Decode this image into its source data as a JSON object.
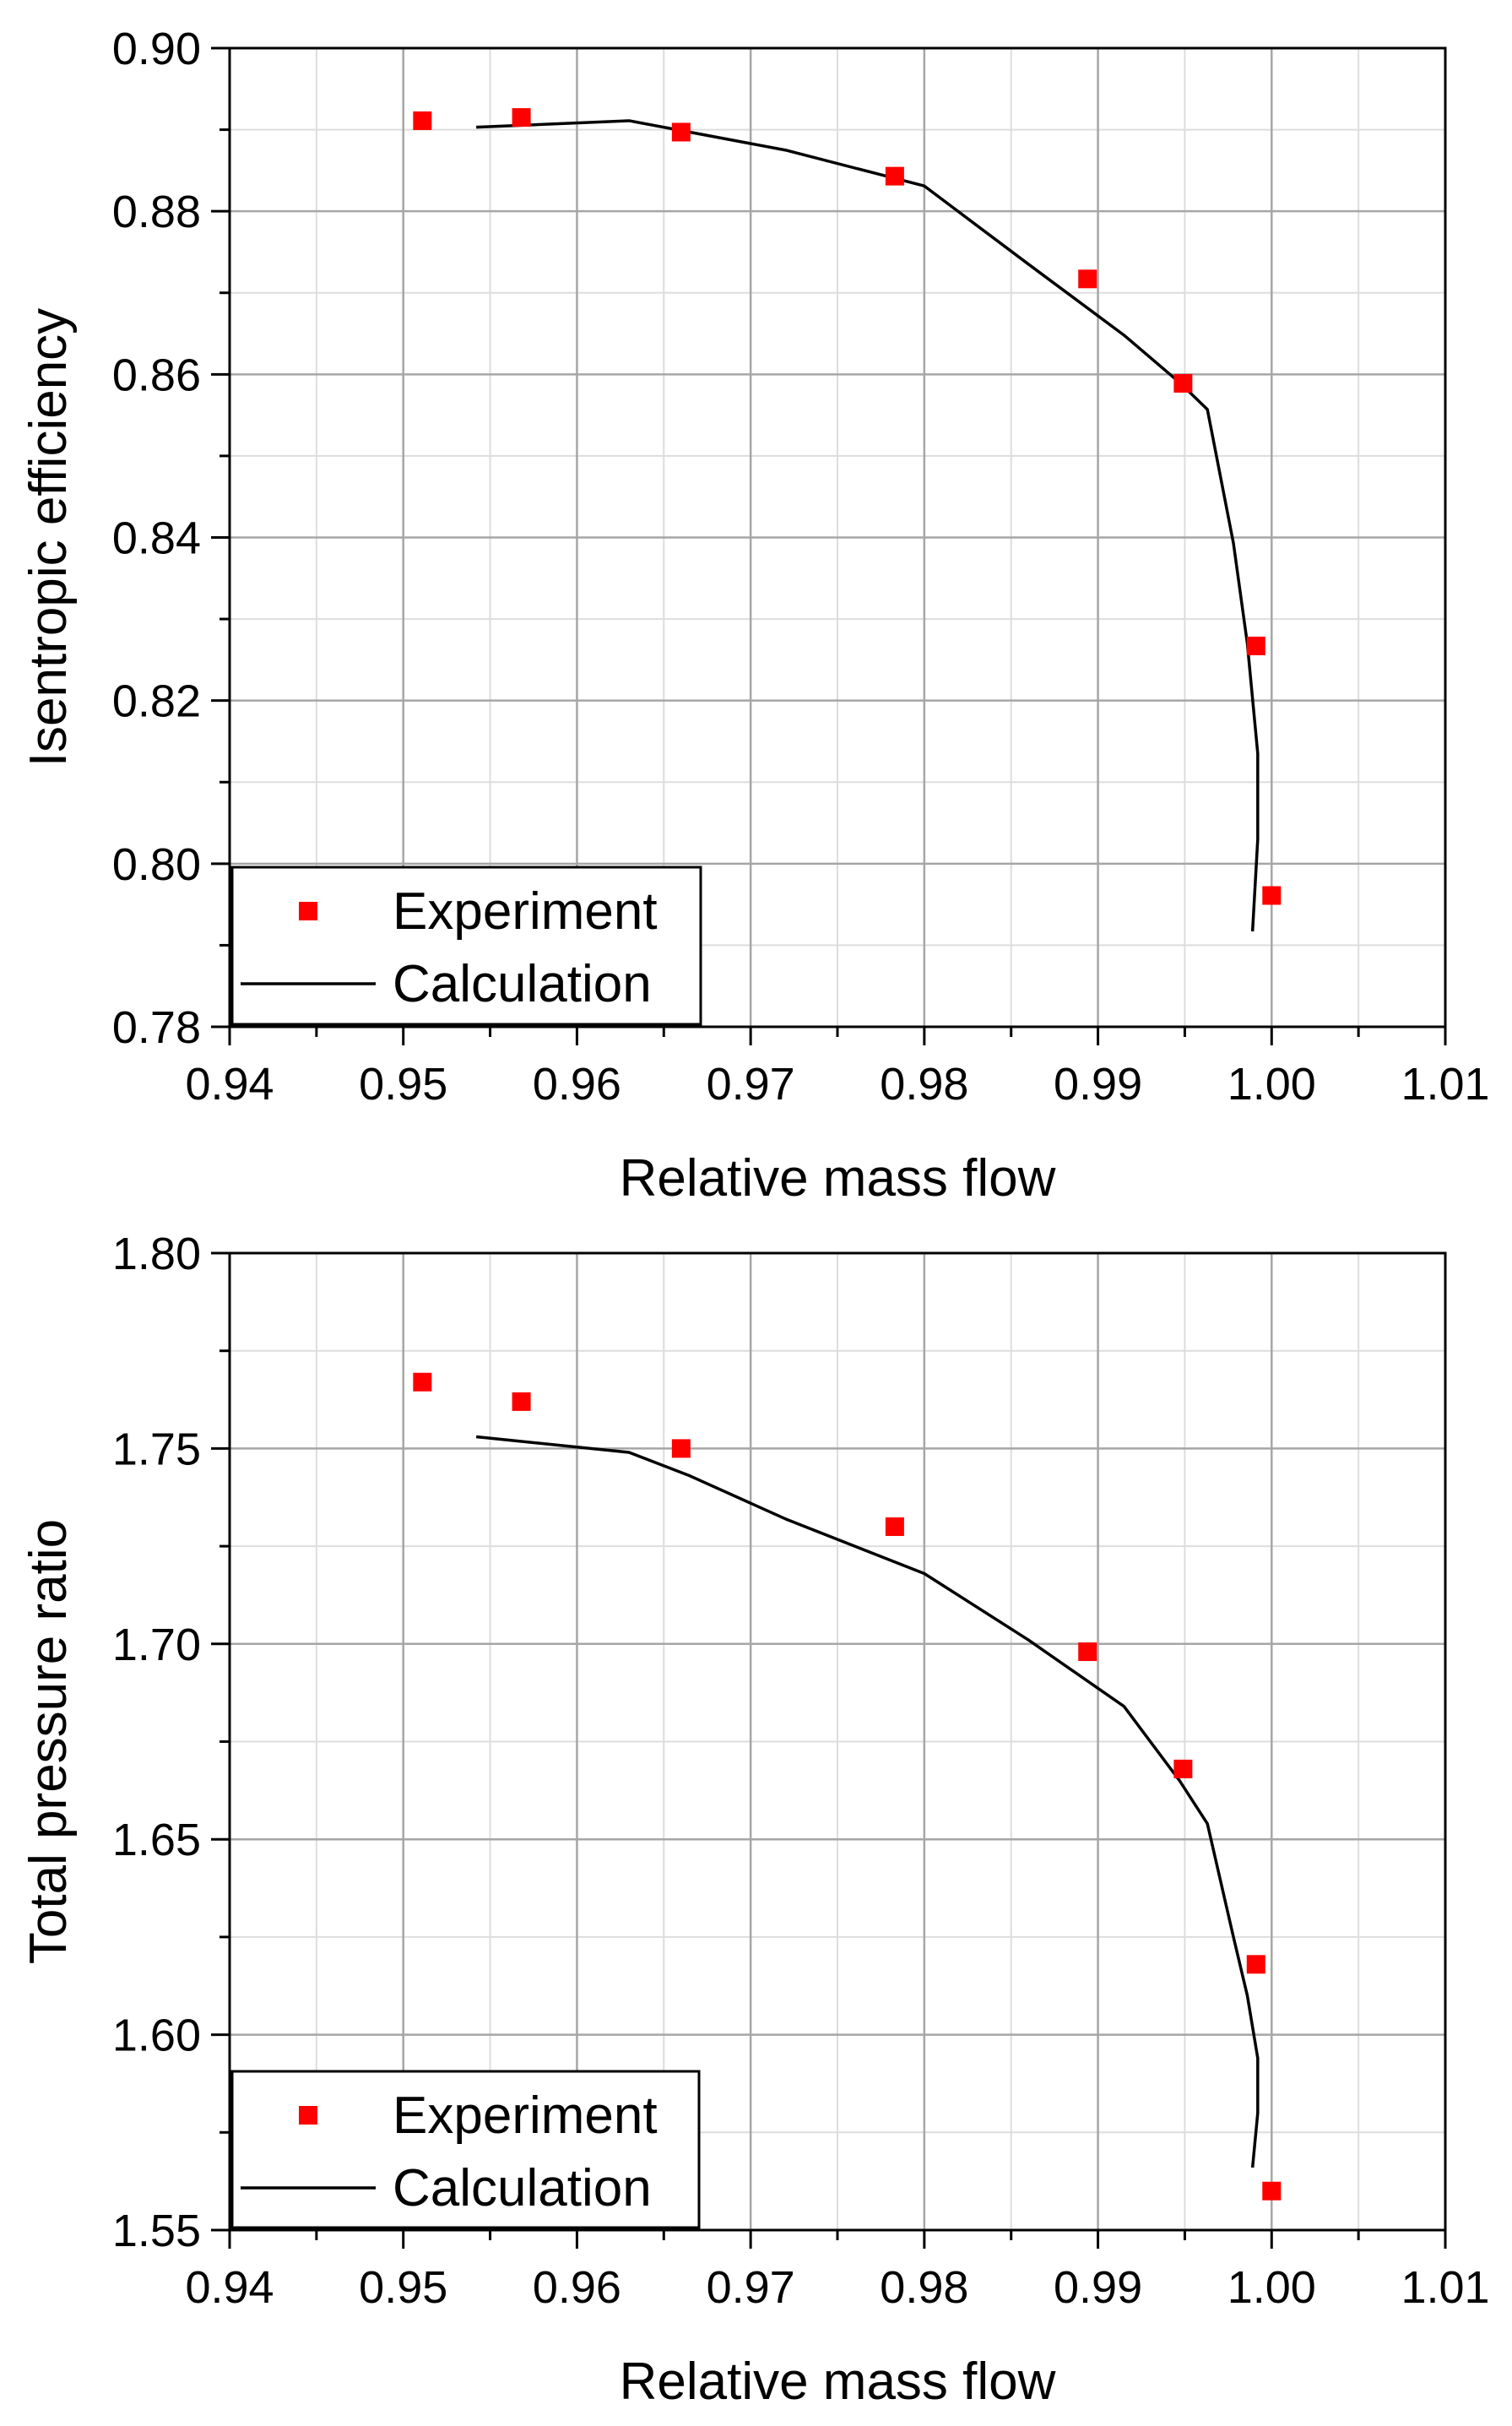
{
  "chart_data": [
    {
      "type": "scatter",
      "title": "",
      "xlabel": "Relative mass flow",
      "ylabel": "Isentropic efficiency",
      "xlim": [
        0.94,
        1.01
      ],
      "ylim": [
        0.78,
        0.9
      ],
      "xticks": [
        "0.94",
        "0.95",
        "0.96",
        "0.97",
        "0.98",
        "0.99",
        "1.00",
        "1.01"
      ],
      "yticks": [
        "0.78",
        "0.80",
        "0.82",
        "0.84",
        "0.86",
        "0.88",
        "0.90"
      ],
      "grid": true,
      "legend_position": "bottom-left",
      "series": [
        {
          "name": "Experiment",
          "style": "markers",
          "color": "#ff0000",
          "x": [
            0.9511,
            0.9568,
            0.966,
            0.9783,
            0.9894,
            0.9949,
            0.9991,
            1.0
          ],
          "y": [
            0.8911,
            0.8915,
            0.8897,
            0.8843,
            0.8717,
            0.8589,
            0.8267,
            0.7961
          ]
        },
        {
          "name": "Calculation",
          "style": "line",
          "color": "#000000",
          "x": [
            0.9542,
            0.963,
            0.9665,
            0.972,
            0.98,
            0.986,
            0.9915,
            0.9947,
            0.9963,
            0.9978,
            0.9986,
            0.9992,
            0.9992,
            0.9989
          ],
          "y": [
            0.8903,
            0.8911,
            0.8897,
            0.8875,
            0.8831,
            0.8735,
            0.8648,
            0.859,
            0.8557,
            0.8393,
            0.827,
            0.8135,
            0.803,
            0.7917
          ]
        }
      ]
    },
    {
      "type": "scatter",
      "title": "",
      "xlabel": "Relative mass flow",
      "ylabel": "Total pressure ratio",
      "xlim": [
        0.94,
        1.01
      ],
      "ylim": [
        1.55,
        1.8
      ],
      "xticks": [
        "0.94",
        "0.95",
        "0.96",
        "0.97",
        "0.98",
        "0.99",
        "1.00",
        "1.01"
      ],
      "yticks": [
        "1.55",
        "1.60",
        "1.65",
        "1.70",
        "1.75",
        "1.80"
      ],
      "grid": true,
      "legend_position": "bottom-left",
      "series": [
        {
          "name": "Experiment",
          "style": "markers",
          "color": "#ff0000",
          "x": [
            0.9511,
            0.9568,
            0.966,
            0.9783,
            0.9894,
            0.9949,
            0.9991,
            1.0
          ],
          "y": [
            1.767,
            1.762,
            1.75,
            1.73,
            1.698,
            1.668,
            1.618,
            1.56
          ]
        },
        {
          "name": "Calculation",
          "style": "line",
          "color": "#000000",
          "x": [
            0.9542,
            0.963,
            0.9665,
            0.972,
            0.98,
            0.986,
            0.9915,
            0.9947,
            0.9963,
            0.9978,
            0.9986,
            0.9992,
            0.9992,
            0.9989
          ],
          "y": [
            1.753,
            1.749,
            1.743,
            1.732,
            1.718,
            1.701,
            1.684,
            1.665,
            1.654,
            1.625,
            1.61,
            1.594,
            1.58,
            1.566
          ]
        }
      ]
    }
  ]
}
